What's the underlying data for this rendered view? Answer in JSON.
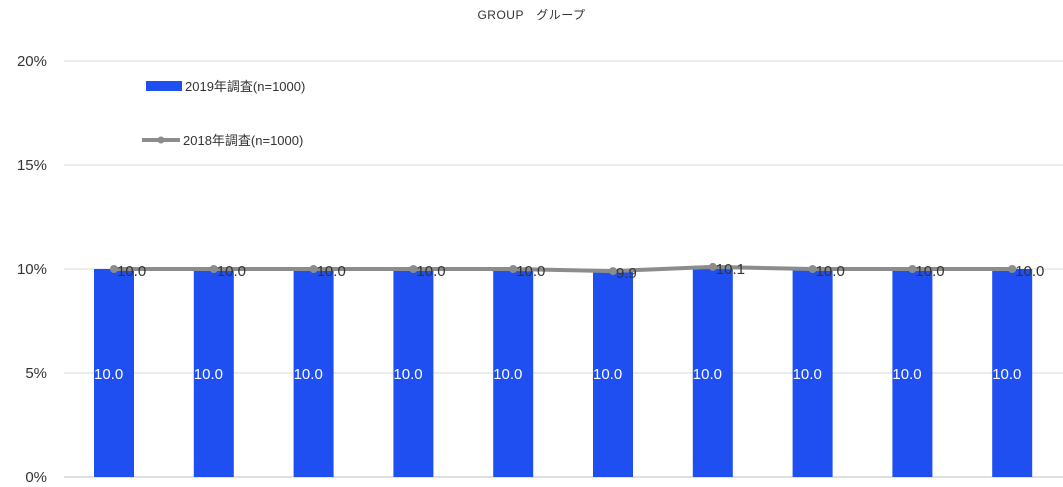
{
  "chart_data": {
    "type": "bar",
    "title": "GROUP　グループ",
    "xlabel": "",
    "ylabel": "",
    "categories": [
      "",
      "",
      "",
      "",
      "",
      "",
      "",
      "",
      "",
      ""
    ],
    "ylim": [
      0,
      20
    ],
    "y_ticks": [
      "0%",
      "5%",
      "10%",
      "15%",
      "20%"
    ],
    "y_tick_values": [
      0,
      5,
      10,
      15,
      20
    ],
    "grid": true,
    "legend_position": "top-left",
    "series": [
      {
        "name": "2019年調査(n=1000)",
        "kind": "bar",
        "color": "#1f4ff0",
        "values": [
          10.0,
          10.0,
          10.0,
          10.0,
          10.0,
          10.0,
          10.0,
          10.0,
          10.0,
          10.0
        ],
        "labels": [
          "10.0",
          "10.0",
          "10.0",
          "10.0",
          "10.0",
          "10.0",
          "10.0",
          "10.0",
          "10.0",
          "10.0"
        ]
      },
      {
        "name": "2018年調査(n=1000)",
        "kind": "line",
        "color": "#8c8c8c",
        "values": [
          10.0,
          10.0,
          10.0,
          10.0,
          10.0,
          9.9,
          10.1,
          10.0,
          10.0,
          10.0
        ],
        "labels": [
          "10.0",
          "10.0",
          "10.0",
          "10.0",
          "10.0",
          "9.9",
          "10.1",
          "10.0",
          "10.0",
          "10.0"
        ]
      }
    ]
  }
}
